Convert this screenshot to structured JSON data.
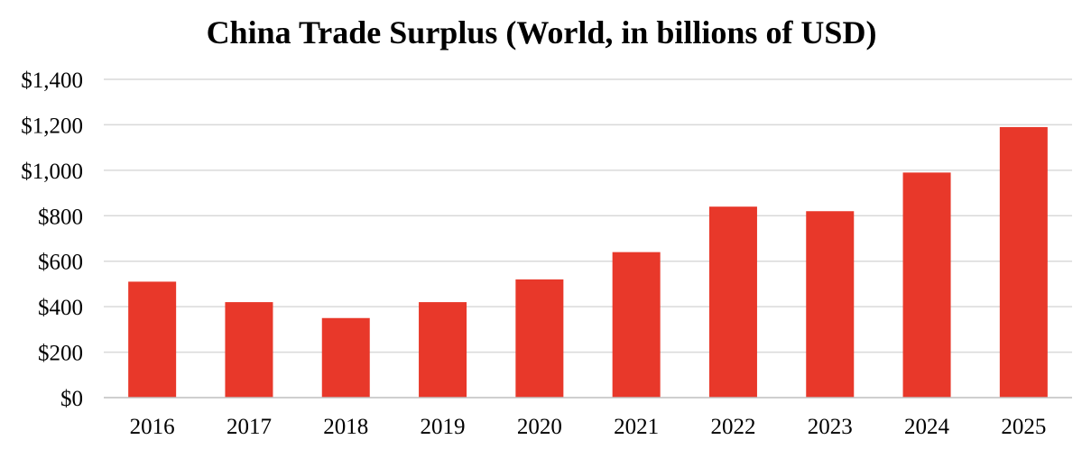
{
  "chart_data": {
    "type": "bar",
    "title": "China Trade Surplus (World, in billions of USD)",
    "xlabel": "",
    "ylabel": "",
    "categories": [
      "2016",
      "2017",
      "2018",
      "2019",
      "2020",
      "2021",
      "2022",
      "2023",
      "2024",
      "2025"
    ],
    "values": [
      510,
      420,
      350,
      420,
      520,
      640,
      840,
      820,
      990,
      1190
    ],
    "ylim": [
      0,
      1400
    ],
    "yticks": [
      0,
      200,
      400,
      600,
      800,
      1000,
      1200,
      1400
    ],
    "ytick_labels": [
      "$0",
      "$200",
      "$400",
      "$600",
      "$800",
      "$1,000",
      "$1,200",
      "$1,400"
    ],
    "grid": true,
    "legend": "none",
    "bar_color": "#e8382a"
  }
}
